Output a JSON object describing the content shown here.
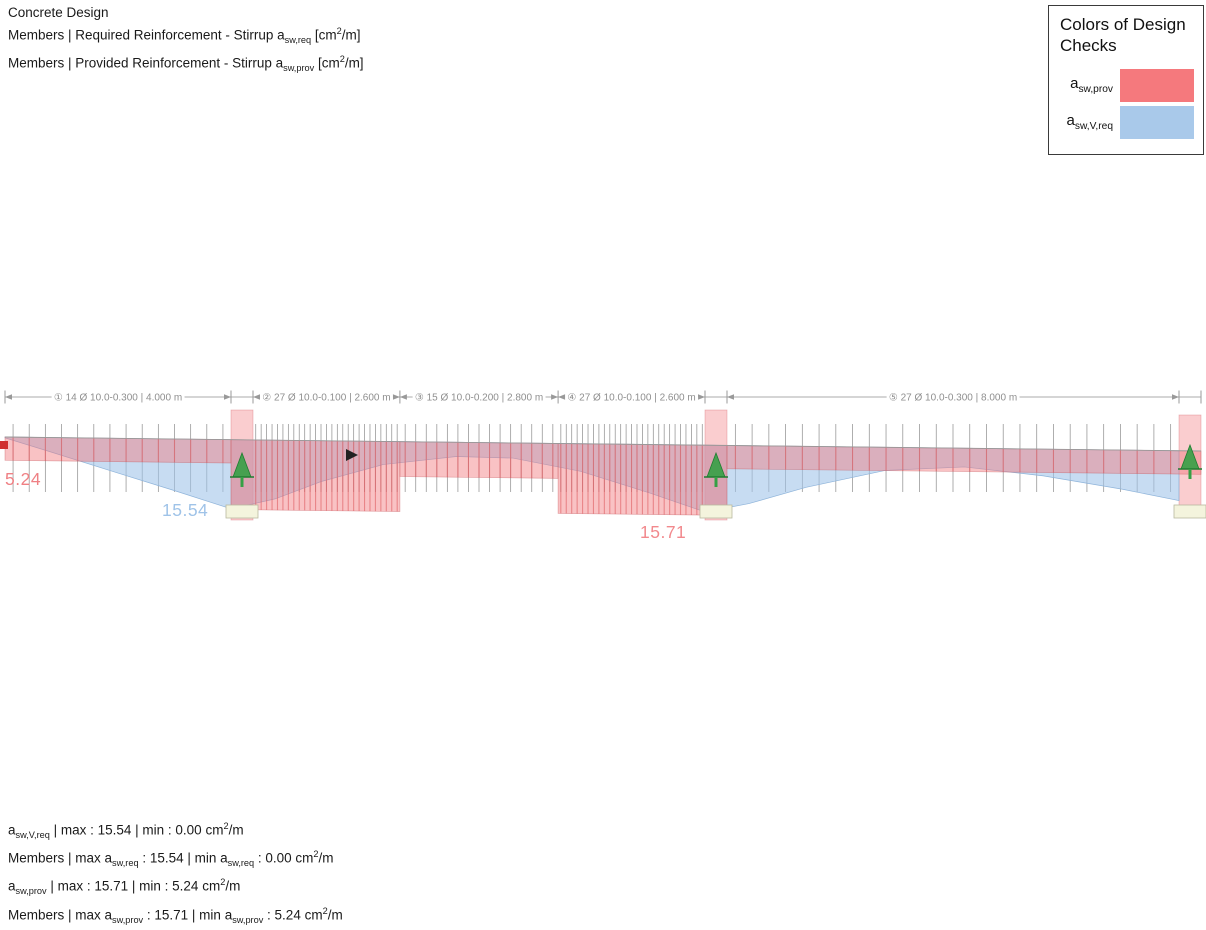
{
  "header": {
    "title": "Concrete Design",
    "line2": "Members | Required Reinforcement - Stirrup a~sw,req~ [cm^2^/m]",
    "line3": "Members | Provided Reinforcement - Stirrup a~sw,prov~ [cm^2^/m]"
  },
  "legend": {
    "title": "Colors of Design Checks",
    "items": [
      {
        "label": "a~sw,prov~",
        "color": "#f5797d"
      },
      {
        "label": "a~sw,V,req~",
        "color": "#a9c9ea"
      }
    ]
  },
  "diagram": {
    "total_length_m": 20.0,
    "segments": [
      {
        "dim_label": "① 14 Ø 10.0-0.300 | 4.000 m",
        "stirrup_count": 14,
        "length_m": 4.0,
        "spacing_m": 0.3,
        "prov_value": 5.24
      },
      {
        "dim_label": "② 27 Ø 10.0-0.100 | 2.600 m",
        "stirrup_count": 27,
        "length_m": 2.6,
        "spacing_m": 0.1,
        "prov_value": 15.71
      },
      {
        "dim_label": "③ 15 Ø 10.0-0.200 | 2.800 m",
        "stirrup_count": 15,
        "length_m": 2.8,
        "spacing_m": 0.2,
        "prov_value": 7.85
      },
      {
        "dim_label": "④ 27 Ø 10.0-0.100 | 2.600 m",
        "stirrup_count": 27,
        "length_m": 2.6,
        "spacing_m": 0.1,
        "prov_value": 15.71
      },
      {
        "dim_label": "⑤ 27 Ø 10.0-0.300 | 8.000 m",
        "stirrup_count": 27,
        "length_m": 8.0,
        "spacing_m": 0.3,
        "prov_value": 5.24
      }
    ],
    "required_profile_m_value": [
      [
        0,
        0.2
      ],
      [
        0.8,
        3.2
      ],
      [
        2.0,
        7.8
      ],
      [
        3.0,
        11.6
      ],
      [
        4.0,
        15.54
      ],
      [
        4.39,
        13.2
      ],
      [
        5.2,
        9.2
      ],
      [
        6.3,
        5.2
      ],
      [
        7.6,
        3.2
      ],
      [
        8.6,
        3.4
      ],
      [
        9.8,
        6.2
      ],
      [
        11.0,
        10.8
      ],
      [
        12.0,
        15.0
      ],
      [
        12.39,
        13.0
      ],
      [
        13.4,
        9.2
      ],
      [
        14.8,
        5.2
      ],
      [
        16.2,
        4.2
      ],
      [
        17.6,
        6.0
      ],
      [
        19.0,
        8.8
      ],
      [
        20.0,
        11.2
      ]
    ],
    "value_labels": [
      {
        "name": "min-provided",
        "text": "5.24",
        "color": "#ef8084"
      },
      {
        "name": "max-required",
        "text": "15.54",
        "color": "#9fc3e8"
      },
      {
        "name": "max-provided",
        "text": "15.71",
        "color": "#f2898d"
      }
    ],
    "colors": {
      "provided_fill": "#f2787c",
      "required_fill": "#9fc3e8",
      "support": "#35a045",
      "stirrup_tick": "#9a9a9a"
    }
  },
  "footer": {
    "lines": [
      "a~sw,V,req~ | max : 15.54 | min : 0.00 cm^2^/m",
      "Members | max a~sw,req~ : 15.54 | min a~sw,req~ : 0.00 cm^2^/m",
      "a~sw,prov~ | max : 15.71 | min : 5.24 cm^2^/m",
      "Members | max a~sw,prov~ : 15.71 | min a~sw,prov~ : 5.24 cm^2^/m"
    ]
  }
}
